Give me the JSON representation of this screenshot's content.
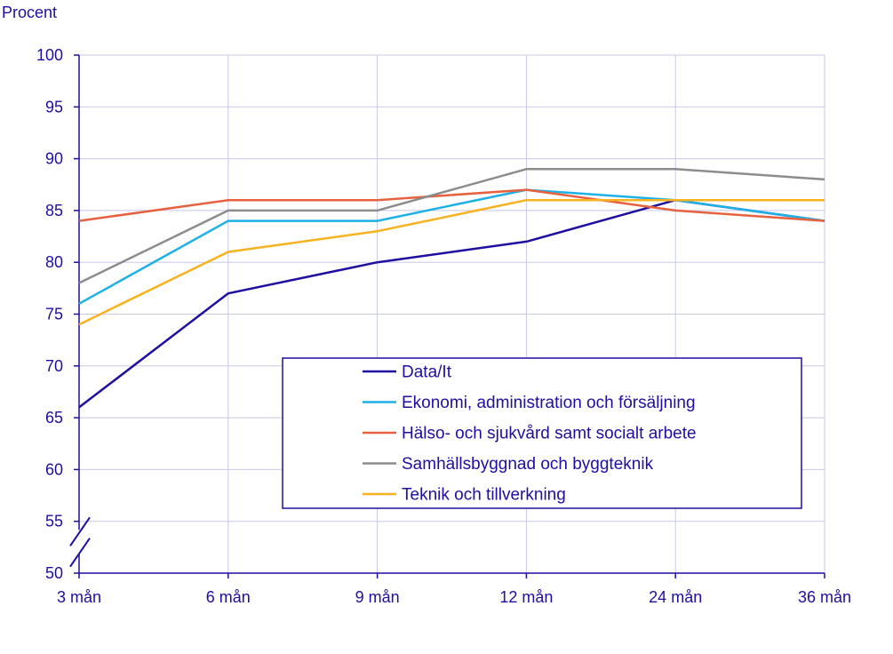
{
  "chart_data": {
    "type": "line",
    "ylabel": "Procent",
    "categories": [
      "3 mån",
      "6 mån",
      "9 mån",
      "12 mån",
      "24 mån",
      "36 mån"
    ],
    "yticks": [
      "50",
      "55",
      "60",
      "65",
      "70",
      "75",
      "80",
      "85",
      "90",
      "95",
      "100"
    ],
    "ylim": [
      50,
      100
    ],
    "axis_break": true,
    "grid": "horizontal and vertical",
    "legend_position": "center-right, inside plot",
    "series": [
      {
        "name": "Data/It",
        "color": "#1e0fa0",
        "values": [
          66,
          77,
          80,
          82,
          86,
          84
        ]
      },
      {
        "name": "Ekonomi, administration och försäljning",
        "color": "#1fb1e6",
        "values": [
          76,
          84,
          84,
          87,
          86,
          84
        ]
      },
      {
        "name": "Hälso- och sjukvård samt socialt arbete",
        "color": "#e8613f",
        "values": [
          84,
          86,
          86,
          87,
          85,
          84
        ]
      },
      {
        "name": "Samhällsbyggnad och byggteknik",
        "color": "#8c8c8c",
        "values": [
          78,
          85,
          85,
          89,
          89,
          88
        ]
      },
      {
        "name": "Teknik och tillverkning",
        "color": "#f7b21f",
        "values": [
          74,
          81,
          83,
          86,
          86,
          86
        ]
      }
    ],
    "axis_color": "#1e0fa0",
    "grid_color": "#c8c8e8"
  }
}
